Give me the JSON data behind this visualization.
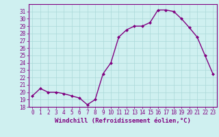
{
  "x": [
    0,
    1,
    2,
    3,
    4,
    5,
    6,
    7,
    8,
    9,
    10,
    11,
    12,
    13,
    14,
    15,
    16,
    17,
    18,
    19,
    20,
    21,
    22,
    23
  ],
  "y": [
    19.5,
    20.5,
    20.0,
    20.0,
    19.8,
    19.5,
    19.2,
    18.3,
    19.0,
    22.5,
    24.0,
    27.5,
    28.5,
    29.0,
    29.0,
    29.5,
    31.2,
    31.2,
    31.0,
    30.0,
    28.8,
    27.5,
    25.0,
    22.5
  ],
  "line_color": "#800080",
  "marker": "D",
  "marker_size": 2.0,
  "line_width": 1.0,
  "xlabel": "Windchill (Refroidissement éolien,°C)",
  "xlabel_fontsize": 6.5,
  "ylim": [
    18,
    32
  ],
  "xlim": [
    -0.5,
    23.5
  ],
  "yticks": [
    18,
    19,
    20,
    21,
    22,
    23,
    24,
    25,
    26,
    27,
    28,
    29,
    30,
    31
  ],
  "xtick_labels": [
    "0",
    "1",
    "2",
    "3",
    "4",
    "5",
    "6",
    "7",
    "8",
    "9",
    "10",
    "11",
    "12",
    "13",
    "14",
    "15",
    "16",
    "17",
    "18",
    "19",
    "20",
    "21",
    "22",
    "23"
  ],
  "tick_fontsize": 5.5,
  "background_color": "#cff0f0",
  "grid_color": "#aad8d8",
  "axes_color": "#800080",
  "spine_color": "#800080"
}
